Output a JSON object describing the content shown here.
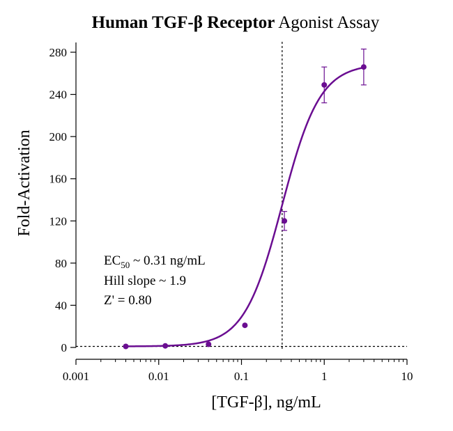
{
  "chart_data": {
    "type": "scatter",
    "title": {
      "bold": "Human TGF-β Receptor",
      "regular": "Agonist Assay"
    },
    "xlabel": "[TGF-β], ng/mL",
    "ylabel": "Fold-Activation",
    "x_scale": "log",
    "xlim": [
      0.001,
      10
    ],
    "ylim": [
      0,
      280
    ],
    "x_ticks": [
      {
        "value": 0.001,
        "label": "0.001"
      },
      {
        "value": 0.01,
        "label": "0.01"
      },
      {
        "value": 0.1,
        "label": "0.1"
      },
      {
        "value": 1,
        "label": "1"
      },
      {
        "value": 10,
        "label": "10"
      }
    ],
    "y_ticks": [
      {
        "value": 0,
        "label": "0"
      },
      {
        "value": 40,
        "label": "40"
      },
      {
        "value": 80,
        "label": "80"
      },
      {
        "value": 120,
        "label": "120"
      },
      {
        "value": 160,
        "label": "160"
      },
      {
        "value": 200,
        "label": "200"
      },
      {
        "value": 240,
        "label": "240"
      },
      {
        "value": 280,
        "label": "280"
      }
    ],
    "series": [
      {
        "name": "TGF-β",
        "color": "#6a0d91",
        "points": [
          {
            "x": 0.004,
            "y": 1,
            "err": 0
          },
          {
            "x": 0.012,
            "y": 1.5,
            "err": 0
          },
          {
            "x": 0.04,
            "y": 3,
            "err": 0
          },
          {
            "x": 0.11,
            "y": 21,
            "err": 0
          },
          {
            "x": 0.33,
            "y": 120,
            "err": 9
          },
          {
            "x": 1.0,
            "y": 249,
            "err": 17
          },
          {
            "x": 3.0,
            "y": 266,
            "err": 17
          }
        ]
      }
    ],
    "fit": {
      "model": "4PL",
      "bottom": 1,
      "top": 269,
      "ec50": 0.31,
      "hill": 1.9,
      "color": "#6a0d91"
    },
    "reference_lines": [
      {
        "orientation": "vertical",
        "value": 0.31,
        "style": "dotted"
      },
      {
        "orientation": "horizontal",
        "value": 1,
        "style": "dotted"
      }
    ],
    "annotations": {
      "ec50_prefix": "EC",
      "ec50_sub": "50",
      "ec50_value": " ~ 0.31 ng/mL",
      "hill": "Hill slope ~ 1.9",
      "z_prime": "Z' = 0.80"
    }
  }
}
